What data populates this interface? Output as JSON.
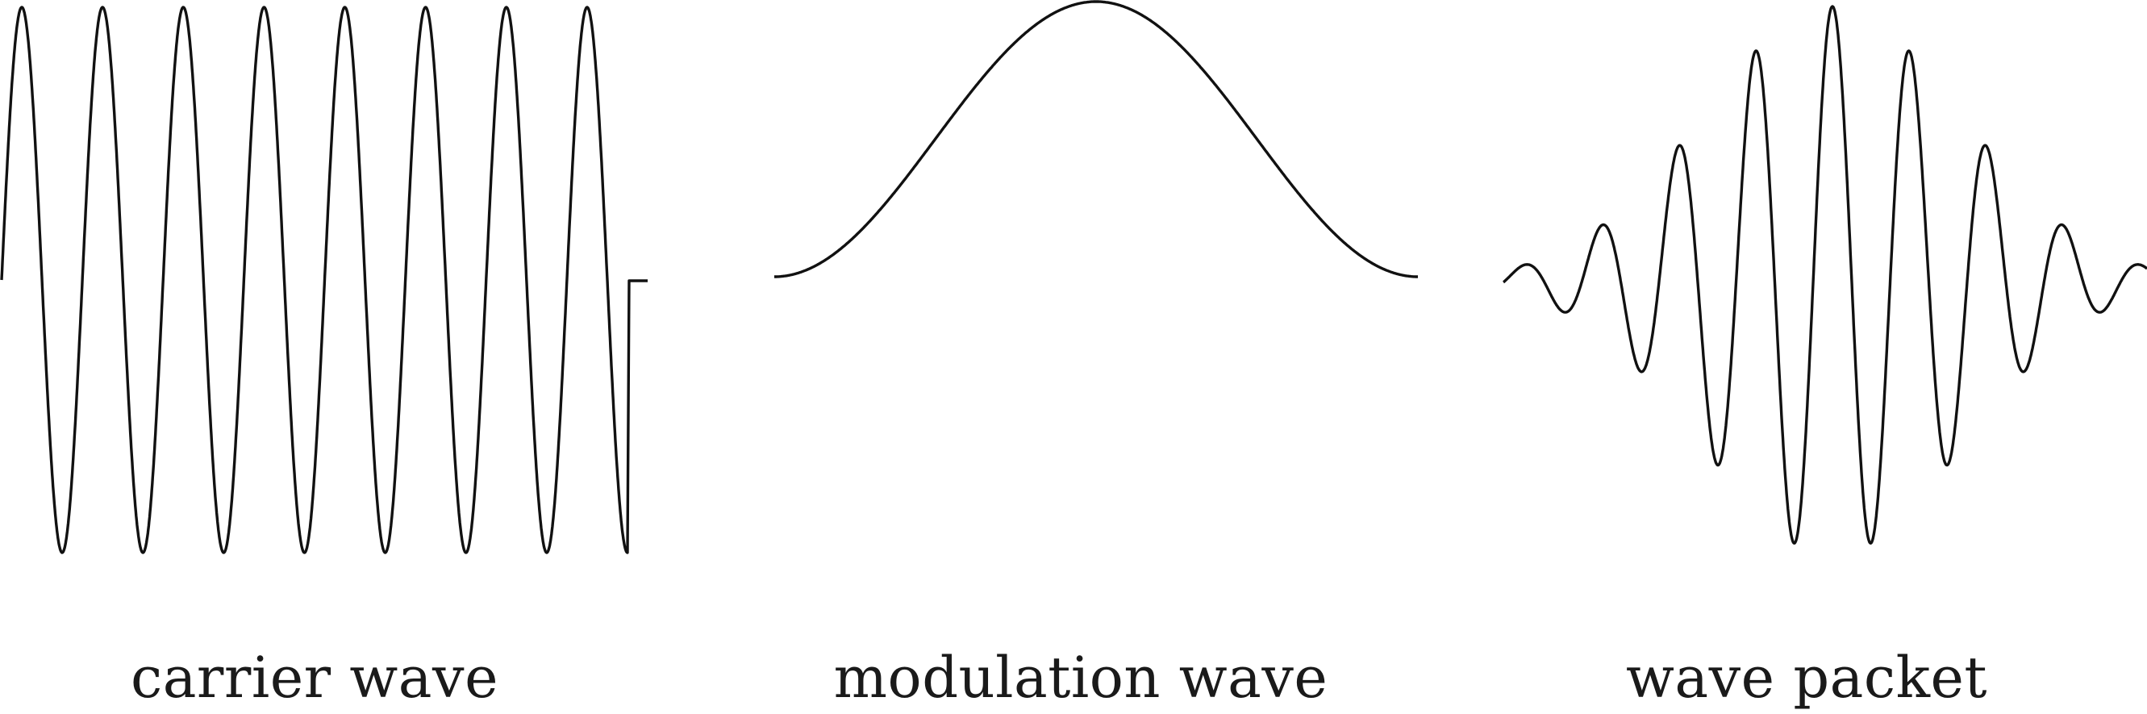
{
  "panels": [
    {
      "id": "carrier",
      "caption": "carrier wave"
    },
    {
      "id": "modulation",
      "caption": "modulation wave"
    },
    {
      "id": "packet",
      "caption": "wave packet"
    }
  ],
  "colors": {
    "stroke": "#111111",
    "text": "#1a1a1a",
    "background": "#ffffff"
  }
}
